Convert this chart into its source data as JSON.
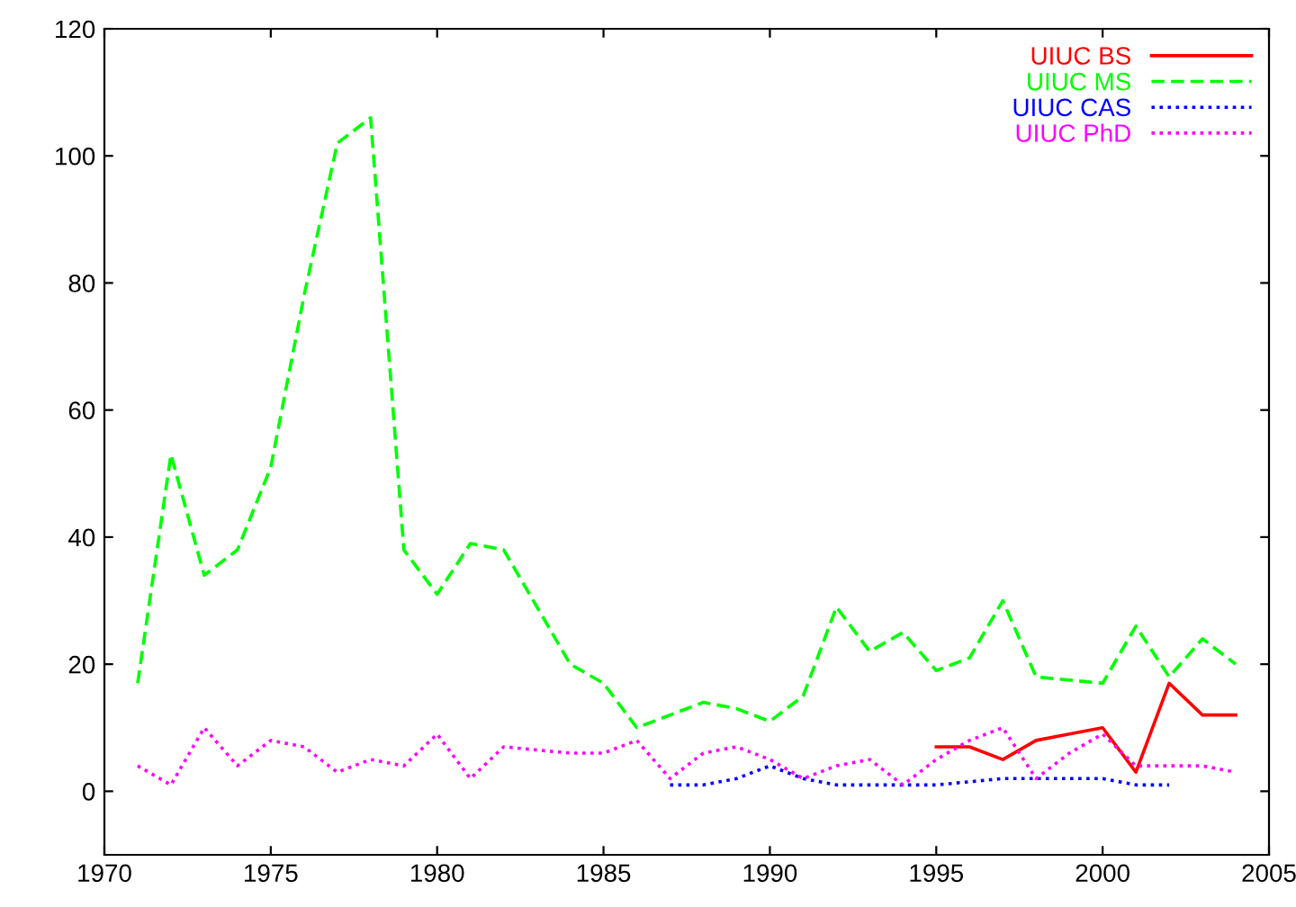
{
  "chart_data": {
    "type": "line",
    "xlim": [
      1970,
      2005
    ],
    "xticks": [
      1970,
      1975,
      1980,
      1985,
      1990,
      1995,
      2000,
      2005
    ],
    "ylim": [
      -10,
      120
    ],
    "yticks": [
      0,
      20,
      40,
      60,
      80,
      100,
      120
    ],
    "grid": false,
    "legend": "top right",
    "series": [
      {
        "name": "UIUC BS",
        "color": "#ff0000",
        "line_style": "solid",
        "x": [
          1995,
          1996,
          1997,
          1998,
          1999,
          2000,
          2001,
          2002,
          2003,
          2004
        ],
        "values": [
          7,
          7,
          5,
          8,
          9,
          10,
          3,
          17,
          12,
          12
        ]
      },
      {
        "name": "UIUC MS",
        "color": "#00ff00",
        "line_style": "dashed",
        "x": [
          1971,
          1972,
          1973,
          1974,
          1975,
          1976,
          1977,
          1978,
          1979,
          1980,
          1981,
          1982,
          1983,
          1984,
          1985,
          1986,
          1987,
          1988,
          1989,
          1990,
          1991,
          1992,
          1993,
          1994,
          1995,
          1996,
          1997,
          1998,
          1999,
          2000,
          2001,
          2002,
          2003,
          2004
        ],
        "values": [
          17,
          53,
          34,
          38,
          51,
          78,
          102,
          106,
          38,
          31,
          39,
          38,
          29,
          20,
          17,
          10,
          12,
          14,
          13,
          11,
          15,
          29,
          22,
          25,
          19,
          21,
          30,
          18,
          17.5,
          17,
          26,
          18,
          24,
          20
        ]
      },
      {
        "name": "UIUC CAS",
        "color": "#0000ff",
        "line_style": "dotted",
        "x": [
          1987,
          1988,
          1989,
          1990,
          1991,
          1992,
          1993,
          1994,
          1995,
          1996,
          1997,
          1998,
          1999,
          2000,
          2001,
          2002
        ],
        "values": [
          1,
          1,
          2,
          4,
          2,
          1,
          1,
          1,
          1,
          1.5,
          2,
          2,
          2,
          2,
          1,
          1
        ]
      },
      {
        "name": "UIUC PhD",
        "color": "#ff00ff",
        "line_style": "dotted",
        "x": [
          1971,
          1972,
          1973,
          1974,
          1975,
          1976,
          1977,
          1978,
          1979,
          1980,
          1981,
          1982,
          1983,
          1984,
          1985,
          1986,
          1987,
          1988,
          1989,
          1990,
          1991,
          1992,
          1993,
          1994,
          1995,
          1996,
          1997,
          1998,
          1999,
          2000,
          2001,
          2002,
          2003,
          2004
        ],
        "values": [
          4,
          1,
          10,
          4,
          8,
          7,
          3,
          5,
          4,
          9,
          2,
          7,
          6.5,
          6,
          6,
          8,
          2,
          6,
          7,
          5,
          2,
          4,
          5,
          1,
          5,
          8,
          10,
          2,
          6,
          9,
          4,
          4,
          4,
          3
        ]
      }
    ]
  }
}
